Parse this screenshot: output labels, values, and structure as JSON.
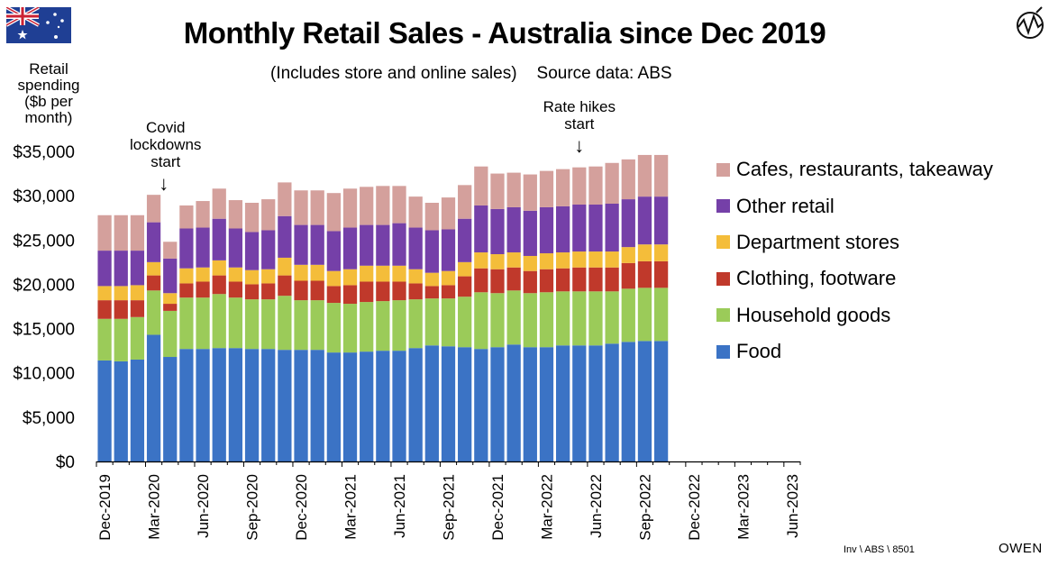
{
  "chart_data": {
    "type": "bar",
    "stacked": true,
    "title": "Monthly Retail Sales - Australia since Dec 2019",
    "subtitle": "(Includes store and online sales)",
    "source_label": "Source data: ABS",
    "ylabel": "Retail spending ($b per month)",
    "ylabel_lines": [
      "Retail",
      "spending",
      "($b per",
      "month)"
    ],
    "ylim": [
      0,
      35000
    ],
    "yticks": [
      0,
      5000,
      10000,
      15000,
      20000,
      25000,
      30000,
      35000
    ],
    "ytick_labels": [
      "$0",
      "$5,000",
      "$10,000",
      "$15,000",
      "$20,000",
      "$25,000",
      "$30,000",
      "$35,000"
    ],
    "xlim_months": 43,
    "xtick_labels": [
      "Dec-2019",
      "Mar-2020",
      "Jun-2020",
      "Sep-2020",
      "Dec-2020",
      "Mar-2021",
      "Jun-2021",
      "Sep-2021",
      "Dec-2021",
      "Mar-2022",
      "Jun-2022",
      "Sep-2022",
      "Dec-2022",
      "Mar-2023",
      "Jun-2023"
    ],
    "categories": [
      "Dec-2019",
      "Jan-2020",
      "Feb-2020",
      "Mar-2020",
      "Apr-2020",
      "May-2020",
      "Jun-2020",
      "Jul-2020",
      "Aug-2020",
      "Sep-2020",
      "Oct-2020",
      "Nov-2020",
      "Dec-2020",
      "Jan-2021",
      "Feb-2021",
      "Mar-2021",
      "Apr-2021",
      "May-2021",
      "Jun-2021",
      "Jul-2021",
      "Aug-2021",
      "Sep-2021",
      "Oct-2021",
      "Nov-2021",
      "Dec-2021",
      "Jan-2022",
      "Feb-2022",
      "Mar-2022",
      "Apr-2022",
      "May-2022",
      "Jun-2022",
      "Jul-2022",
      "Aug-2022",
      "Sep-2022",
      "Oct-2022"
    ],
    "series": [
      {
        "name": "Food",
        "color": "#3b73c5",
        "values": [
          11400,
          11300,
          11500,
          14300,
          11800,
          12700,
          12700,
          12800,
          12800,
          12700,
          12700,
          12600,
          12600,
          12600,
          12300,
          12300,
          12400,
          12500,
          12500,
          12800,
          13100,
          13000,
          12900,
          12700,
          12900,
          13200,
          12900,
          12900,
          13100,
          13100,
          13100,
          13300,
          13500,
          13600,
          13600
        ]
      },
      {
        "name": "Household goods",
        "color": "#9bcb59",
        "values": [
          4700,
          4800,
          4800,
          5000,
          5200,
          5800,
          5800,
          6100,
          5700,
          5600,
          5600,
          6100,
          5600,
          5600,
          5600,
          5500,
          5600,
          5600,
          5700,
          5500,
          5300,
          5400,
          5700,
          6400,
          6100,
          6100,
          6100,
          6200,
          6100,
          6100,
          6100,
          5900,
          6000,
          6000,
          6000
        ]
      },
      {
        "name": "Clothing, footware",
        "color": "#c0392b",
        "values": [
          2100,
          2100,
          1900,
          1700,
          800,
          1600,
          1800,
          2100,
          1800,
          1700,
          1800,
          2300,
          2200,
          2200,
          1900,
          2100,
          2300,
          2200,
          2100,
          1800,
          1400,
          1500,
          2300,
          2700,
          2700,
          2600,
          2500,
          2600,
          2600,
          2700,
          2700,
          2700,
          2900,
          3000,
          3000
        ]
      },
      {
        "name": "Department stores",
        "color": "#f4bd3a",
        "values": [
          1600,
          1600,
          1700,
          1500,
          1200,
          1700,
          1600,
          1700,
          1600,
          1600,
          1600,
          2000,
          1800,
          1800,
          1700,
          1800,
          1800,
          1800,
          1800,
          1600,
          1500,
          1600,
          1600,
          1800,
          1700,
          1700,
          1700,
          1800,
          1800,
          1800,
          1800,
          1800,
          1800,
          1900,
          1900
        ]
      },
      {
        "name": "Other retail",
        "color": "#7540a8",
        "values": [
          4000,
          4000,
          3900,
          4500,
          3900,
          4500,
          4500,
          4700,
          4400,
          4300,
          4400,
          4700,
          4500,
          4500,
          4500,
          4700,
          4600,
          4600,
          4800,
          4700,
          4800,
          4700,
          4900,
          5300,
          5100,
          5100,
          5100,
          5200,
          5200,
          5300,
          5300,
          5400,
          5400,
          5400,
          5400
        ]
      },
      {
        "name": "Cafes, restaurants, takeaway",
        "color": "#d4a09c",
        "values": [
          4000,
          4000,
          4000,
          3100,
          1900,
          2600,
          3000,
          3400,
          3200,
          3300,
          3500,
          3800,
          3900,
          3900,
          4300,
          4400,
          4300,
          4400,
          4200,
          3500,
          3100,
          3600,
          3800,
          4400,
          4000,
          3900,
          4100,
          4100,
          4200,
          4200,
          4300,
          4600,
          4500,
          4700,
          4700
        ]
      }
    ],
    "annotations": [
      {
        "lines": [
          "Covid",
          "lockdowns",
          "start"
        ],
        "arrow": "↓",
        "month_index": 4
      },
      {
        "lines": [
          "Rate hikes",
          "start"
        ],
        "arrow": "↓",
        "month_index": 29
      }
    ],
    "legend_order": [
      "Cafes, restaurants, takeaway",
      "Other retail",
      "Department stores",
      "Clothing, footware",
      "Household goods",
      "Food"
    ],
    "legend_position": "right"
  },
  "footer": {
    "source_code": "Inv \\ ABS \\ 8501",
    "brand": "OWEN"
  },
  "icons": {
    "flag": "australia-flag-icon",
    "logo": "owen-logo-icon"
  }
}
